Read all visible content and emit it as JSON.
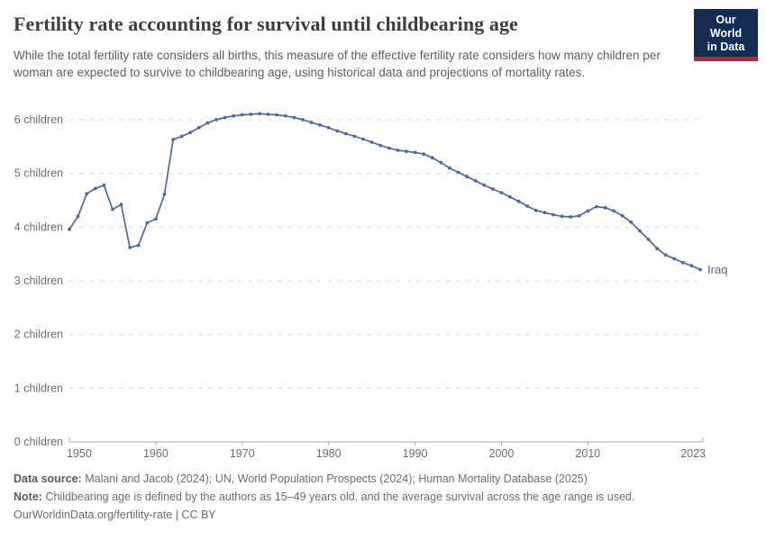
{
  "header": {
    "title": "Fertility rate accounting for survival until childbearing age",
    "subtitle": "While the total fertility rate considers all births, this measure of the effective fertility rate considers how many children per woman are expected to survive to childbearing age, using historical data and projections of mortality rates.",
    "logo": {
      "line1": "Our World",
      "line2": "in Data"
    }
  },
  "chart_data": {
    "type": "line",
    "title": "Fertility rate accounting for survival until childbearing age",
    "xlabel": "",
    "ylabel": "",
    "xlim": [
      1950,
      2023
    ],
    "ylim": [
      0,
      6.2
    ],
    "grid": "horizontal-dashed",
    "legend": "end-of-line-label",
    "x_ticks": [
      1950,
      1960,
      1970,
      1980,
      1990,
      2000,
      2010,
      2023
    ],
    "y_ticks": [
      {
        "v": 0,
        "label": "0 children"
      },
      {
        "v": 1,
        "label": "1 children"
      },
      {
        "v": 2,
        "label": "2 children"
      },
      {
        "v": 3,
        "label": "3 children"
      },
      {
        "v": 4,
        "label": "4 children"
      },
      {
        "v": 5,
        "label": "5 children"
      },
      {
        "v": 6,
        "label": "6 children"
      }
    ],
    "x": [
      1950,
      1951,
      1952,
      1953,
      1954,
      1955,
      1956,
      1957,
      1958,
      1959,
      1960,
      1961,
      1962,
      1963,
      1964,
      1965,
      1966,
      1967,
      1968,
      1969,
      1970,
      1971,
      1972,
      1973,
      1974,
      1975,
      1976,
      1977,
      1978,
      1979,
      1980,
      1981,
      1982,
      1983,
      1984,
      1985,
      1986,
      1987,
      1988,
      1989,
      1990,
      1991,
      1992,
      1993,
      1994,
      1995,
      1996,
      1997,
      1998,
      1999,
      2000,
      2001,
      2002,
      2003,
      2004,
      2005,
      2006,
      2007,
      2008,
      2009,
      2010,
      2011,
      2012,
      2013,
      2014,
      2015,
      2016,
      2017,
      2018,
      2019,
      2020,
      2021,
      2022,
      2023
    ],
    "series": [
      {
        "name": "Iraq",
        "color": "#4C6A9C",
        "values": [
          3.96,
          4.2,
          4.62,
          4.72,
          4.78,
          4.33,
          4.42,
          3.62,
          3.66,
          4.08,
          4.15,
          4.61,
          5.63,
          5.69,
          5.76,
          5.85,
          5.94,
          6.0,
          6.04,
          6.07,
          6.09,
          6.1,
          6.11,
          6.1,
          6.09,
          6.07,
          6.04,
          6.0,
          5.95,
          5.9,
          5.85,
          5.79,
          5.74,
          5.69,
          5.64,
          5.58,
          5.52,
          5.47,
          5.43,
          5.41,
          5.39,
          5.36,
          5.29,
          5.2,
          5.1,
          5.02,
          4.94,
          4.86,
          4.78,
          4.71,
          4.64,
          4.56,
          4.48,
          4.39,
          4.31,
          4.27,
          4.23,
          4.2,
          4.19,
          4.21,
          4.3,
          4.38,
          4.36,
          4.3,
          4.21,
          4.09,
          3.93,
          3.77,
          3.6,
          3.48,
          3.41,
          3.34,
          3.28,
          3.21
        ]
      }
    ]
  },
  "footer": {
    "data_source_label": "Data source:",
    "data_source": "Malani and Jacob (2024); UN, World Population Prospects (2024); Human Mortality Database (2025)",
    "note_label": "Note:",
    "note": "Childbearing age is defined by the authors as 15–49 years old, and the average survival across the age range is used.",
    "url": "OurWorldinData.org/fertility-rate",
    "separator": "|",
    "license": "CC BY"
  },
  "colors": {
    "series_blue": "#4C6A9C",
    "logo_background": "#142d55",
    "logo_accent_red": "#a52d3c",
    "gridline": "#dcdcdc",
    "axis": "#a8a8a8",
    "tick_label": "#6e6e6e"
  }
}
